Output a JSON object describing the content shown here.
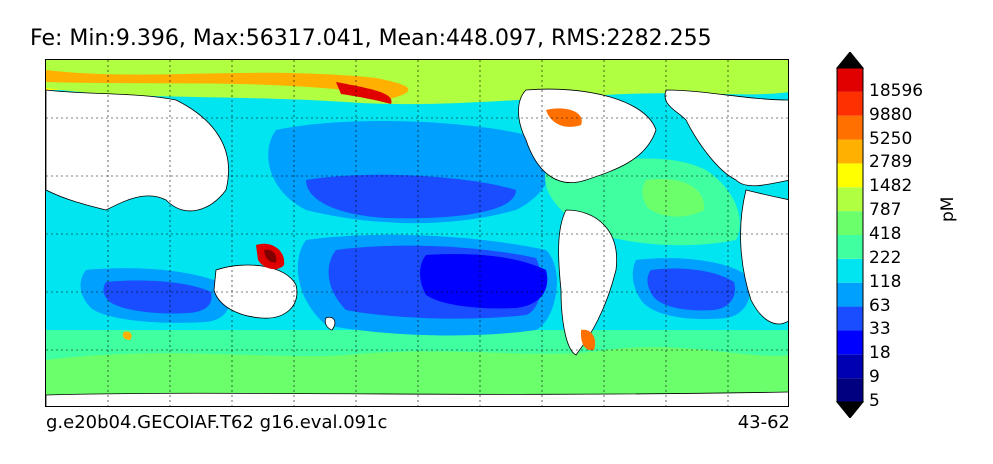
{
  "title": "Fe: Min:9.396, Max:56317.041, Mean:448.097, RMS:2282.255",
  "footer": {
    "left": "g.e20b04.GECOIAF.T62 g16.eval.091c",
    "right": "43-62"
  },
  "colorbar": {
    "units": "pM",
    "levels": [
      "18596",
      "9880",
      "5250",
      "2789",
      "1482",
      "787",
      "418",
      "222",
      "118",
      "63",
      "33",
      "18",
      "9",
      "5"
    ],
    "colors": [
      "#000080",
      "#0000b3",
      "#0000ff",
      "#1a4dff",
      "#00a0ff",
      "#00e5f0",
      "#40ffa0",
      "#6cff6c",
      "#b0ff40",
      "#ffff00",
      "#ffb000",
      "#ff7000",
      "#ff3000",
      "#e00000",
      "#800000"
    ]
  },
  "map": {
    "ocean_palette": {
      "very_low": "#0000ff",
      "low": "#1a4dff",
      "mid_low": "#00a0ff",
      "mid": "#00e5f0",
      "mid_high": "#40ffa0",
      "high": "#b0ff40",
      "very_high": "#ffff00",
      "extreme": "#ff7000",
      "land": "#ffffff"
    }
  }
}
